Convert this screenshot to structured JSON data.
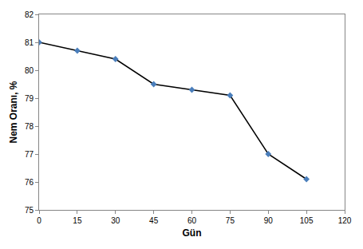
{
  "chart_data": {
    "type": "line",
    "x_label": "Gün",
    "y_label": "Nem Oranı, %",
    "x": [
      0,
      15,
      30,
      45,
      60,
      75,
      90,
      105
    ],
    "series": [
      {
        "name": "Nem Oranı",
        "color": "#000000",
        "marker": "diamond",
        "values": [
          81.0,
          80.7,
          80.4,
          79.5,
          79.3,
          79.1,
          77.0,
          76.1
        ]
      }
    ],
    "xlim": [
      0,
      120
    ],
    "xticks": [
      0,
      15,
      30,
      45,
      60,
      75,
      90,
      105,
      120
    ],
    "ylim": [
      75,
      82
    ],
    "yticks": [
      75,
      76,
      77,
      78,
      79,
      80,
      81,
      82
    ],
    "grid": false
  }
}
